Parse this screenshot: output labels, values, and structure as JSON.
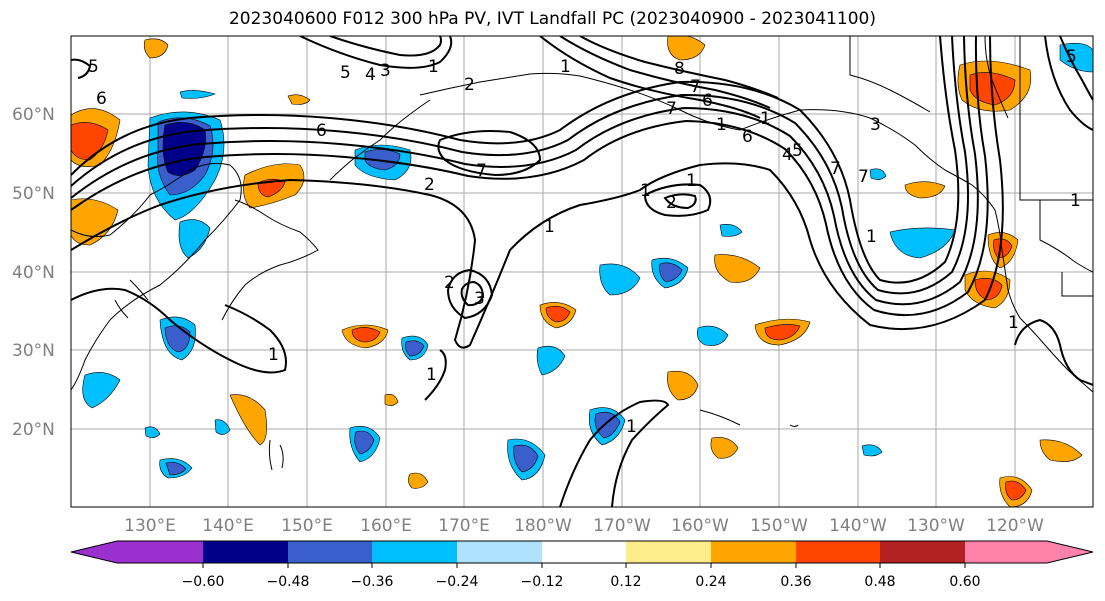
{
  "title": "2023040600 F012 300 hPa PV, IVT Landfall PC (2023040900 - 2023041100)",
  "lat_labels": [
    "60°N",
    "50°N",
    "40°N",
    "30°N",
    "20°N"
  ],
  "lon_labels": [
    "130°E",
    "140°E",
    "150°E",
    "160°E",
    "170°E",
    "180°W",
    "170°W",
    "160°W",
    "150°W",
    "140°W",
    "130°W",
    "120°W"
  ],
  "colorbar": {
    "colors": [
      "#9b30d0",
      "#00008b",
      "#3a5fcd",
      "#00bfff",
      "#b0e2ff",
      "#ffffff",
      "#ffec8b",
      "#ffa500",
      "#ff4500",
      "#b22222",
      "#ff82ab"
    ],
    "tick_labels": [
      "−0.60",
      "−0.48",
      "−0.36",
      "−0.24",
      "−0.12",
      "0.12",
      "0.24",
      "0.36",
      "0.48",
      "0.60"
    ]
  },
  "contour_labels": [
    "5",
    "6",
    "5",
    "4",
    "3",
    "1",
    "2",
    "6",
    "7",
    "6",
    "8",
    "7",
    "6",
    "4",
    "5",
    "2",
    "1",
    "7",
    "1",
    "2",
    "1",
    "7",
    "7",
    "5",
    "3",
    "2",
    "1",
    "1",
    "1",
    "1",
    "1",
    "1",
    "1",
    "1",
    "3",
    "1"
  ]
}
